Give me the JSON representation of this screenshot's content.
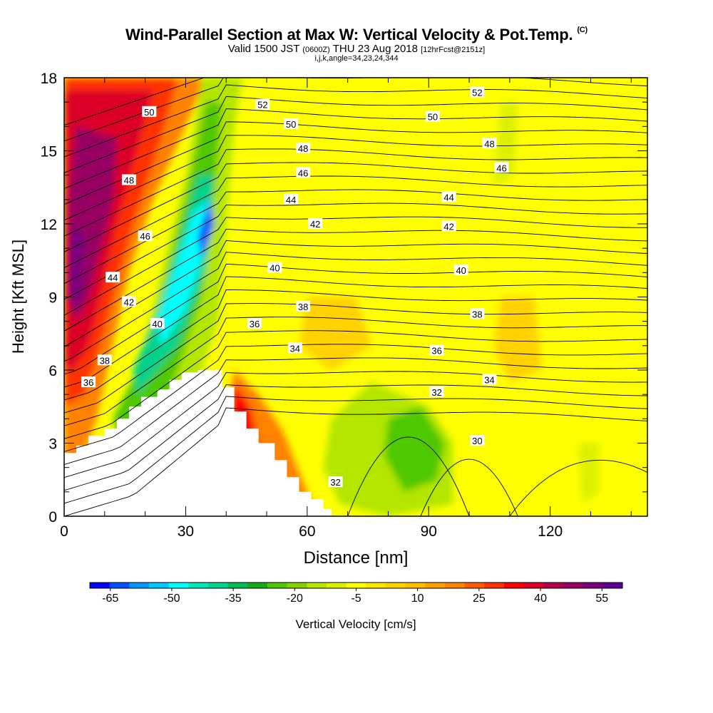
{
  "header": {
    "title_main": "Wind-Parallel Section at Max W: Vertical Velocity & Pot.Temp.",
    "title_copyright": "(C)",
    "subtitle_a": "Valid 1500 JST",
    "subtitle_b": "(0600Z)",
    "subtitle_c": "THU 23 Aug 2018",
    "subtitle_d": "[12hrFcst@2151z]",
    "subtitle2": "i,j,k,angle=34,23,24,344"
  },
  "chart_data": {
    "type": "heatmap",
    "xlabel": "Distance [nm]",
    "ylabel": "Height [Kft MSL]",
    "xlim": [
      0,
      144
    ],
    "ylim": [
      0,
      18
    ],
    "xticks": [
      0,
      30,
      60,
      90,
      120
    ],
    "yticks": [
      0,
      3,
      6,
      9,
      12,
      15,
      18
    ],
    "colorbar": {
      "label": "Vertical Velocity [cm/s]",
      "ticks": [
        -65,
        -50,
        -35,
        -20,
        -5,
        10,
        25,
        40,
        55
      ],
      "bins": [
        -70,
        -65,
        -60,
        -55,
        -50,
        -45,
        -40,
        -35,
        -30,
        -25,
        -20,
        -15,
        -10,
        -5,
        0,
        5,
        10,
        15,
        20,
        25,
        30,
        35,
        40,
        45,
        50,
        55,
        60
      ],
      "colors": [
        "#0000ff",
        "#0050ff",
        "#0096ff",
        "#00c8ff",
        "#00ffff",
        "#00e6b4",
        "#00d28c",
        "#00be50",
        "#14aa14",
        "#50c800",
        "#82d200",
        "#b4e600",
        "#dcf000",
        "#ffff00",
        "#ffe600",
        "#ffd200",
        "#ffbe00",
        "#ffa000",
        "#ff8200",
        "#ff5a00",
        "#ff3200",
        "#ff0000",
        "#dc0028",
        "#b40046",
        "#960064",
        "#78007d",
        "#5a0096"
      ]
    },
    "theta_labels": [
      {
        "v": "52",
        "x": 49,
        "y": 16.9
      },
      {
        "v": "52",
        "x": 102,
        "y": 17.4
      },
      {
        "v": "50",
        "x": 21,
        "y": 16.6
      },
      {
        "v": "50",
        "x": 56,
        "y": 16.1
      },
      {
        "v": "50",
        "x": 91,
        "y": 16.4
      },
      {
        "v": "48",
        "x": 16,
        "y": 13.8
      },
      {
        "v": "48",
        "x": 59,
        "y": 15.1
      },
      {
        "v": "48",
        "x": 105,
        "y": 15.3
      },
      {
        "v": "46",
        "x": 20,
        "y": 11.5
      },
      {
        "v": "46",
        "x": 59,
        "y": 14.1
      },
      {
        "v": "46",
        "x": 108,
        "y": 14.3
      },
      {
        "v": "44",
        "x": 12,
        "y": 9.8
      },
      {
        "v": "44",
        "x": 56,
        "y": 13.0
      },
      {
        "v": "44",
        "x": 95,
        "y": 13.1
      },
      {
        "v": "42",
        "x": 16,
        "y": 8.8
      },
      {
        "v": "42",
        "x": 62,
        "y": 12.0
      },
      {
        "v": "42",
        "x": 95,
        "y": 11.9
      },
      {
        "v": "40",
        "x": 23,
        "y": 7.9
      },
      {
        "v": "40",
        "x": 52,
        "y": 10.2
      },
      {
        "v": "40",
        "x": 98,
        "y": 10.1
      },
      {
        "v": "38",
        "x": 10,
        "y": 6.4
      },
      {
        "v": "38",
        "x": 59,
        "y": 8.6
      },
      {
        "v": "38",
        "x": 102,
        "y": 8.3
      },
      {
        "v": "36",
        "x": 6,
        "y": 5.5
      },
      {
        "v": "36",
        "x": 47,
        "y": 7.9
      },
      {
        "v": "36",
        "x": 92,
        "y": 6.8
      },
      {
        "v": "34",
        "x": 57,
        "y": 6.9
      },
      {
        "v": "34",
        "x": 105,
        "y": 5.6
      },
      {
        "v": "32",
        "x": 92,
        "y": 5.1
      },
      {
        "v": "32",
        "x": 67,
        "y": 1.4
      },
      {
        "v": "30",
        "x": 102,
        "y": 3.1
      }
    ]
  }
}
